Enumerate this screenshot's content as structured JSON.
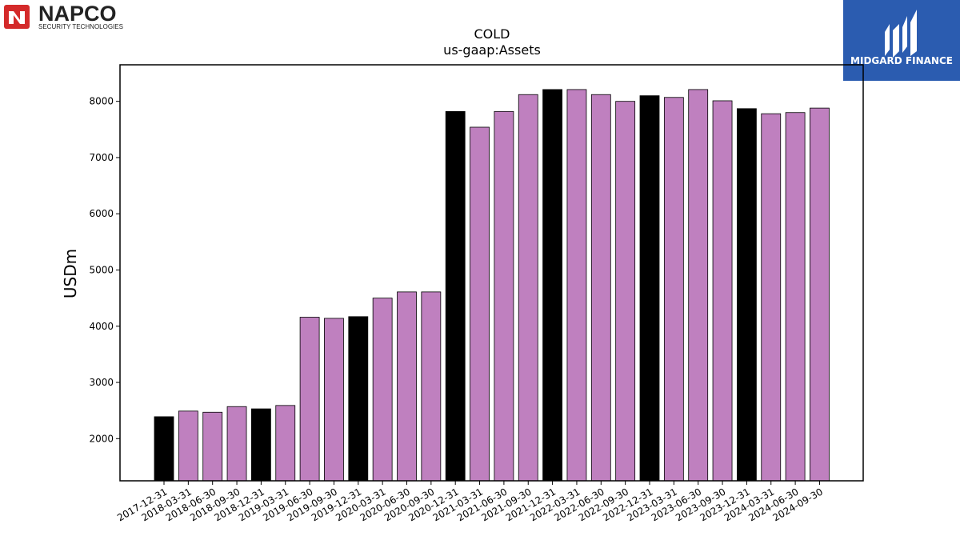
{
  "logos": {
    "left": {
      "brand": "NAPCO",
      "tagline": "SECURITY TECHNOLOGIES",
      "icon": "napco-n-icon"
    },
    "right": {
      "brand": "MIDGARD FINANCE",
      "icon": "midgard-m-icon",
      "color": "#2b5cb0"
    }
  },
  "colors": {
    "annual": "#000000",
    "quarterly": "#bf80bf",
    "edge": "#000000"
  },
  "chart_data": {
    "type": "bar",
    "title": "COLD",
    "subtitle": "us-gaap:Assets",
    "xlabel": "",
    "ylabel": "USDm",
    "ylim": [
      1250,
      8650
    ],
    "yticks": [
      2000,
      3000,
      4000,
      5000,
      6000,
      7000,
      8000
    ],
    "grid": false,
    "categories": [
      "2017-12-31",
      "2018-03-31",
      "2018-06-30",
      "2018-09-30",
      "2018-12-31",
      "2019-03-31",
      "2019-06-30",
      "2019-09-30",
      "2019-12-31",
      "2020-03-31",
      "2020-06-30",
      "2020-09-30",
      "2020-12-31",
      "2021-03-31",
      "2021-06-30",
      "2021-09-30",
      "2021-12-31",
      "2022-03-31",
      "2022-06-30",
      "2022-09-30",
      "2022-12-31",
      "2023-03-31",
      "2023-06-30",
      "2023-09-30",
      "2023-12-31",
      "2024-03-31",
      "2024-06-30",
      "2024-09-30"
    ],
    "values": [
      2390,
      2490,
      2470,
      2570,
      2530,
      2590,
      4160,
      4140,
      4170,
      4500,
      4610,
      4610,
      7820,
      7540,
      7820,
      8120,
      8210,
      8210,
      8120,
      8000,
      8100,
      8070,
      8210,
      8010,
      7870,
      7780,
      7800,
      7880
    ],
    "bar_colors": [
      "#000000",
      "#bf80bf",
      "#bf80bf",
      "#bf80bf",
      "#000000",
      "#bf80bf",
      "#bf80bf",
      "#bf80bf",
      "#000000",
      "#bf80bf",
      "#bf80bf",
      "#bf80bf",
      "#000000",
      "#bf80bf",
      "#bf80bf",
      "#bf80bf",
      "#000000",
      "#bf80bf",
      "#bf80bf",
      "#bf80bf",
      "#000000",
      "#bf80bf",
      "#bf80bf",
      "#bf80bf",
      "#000000",
      "#bf80bf",
      "#bf80bf",
      "#bf80bf"
    ]
  }
}
